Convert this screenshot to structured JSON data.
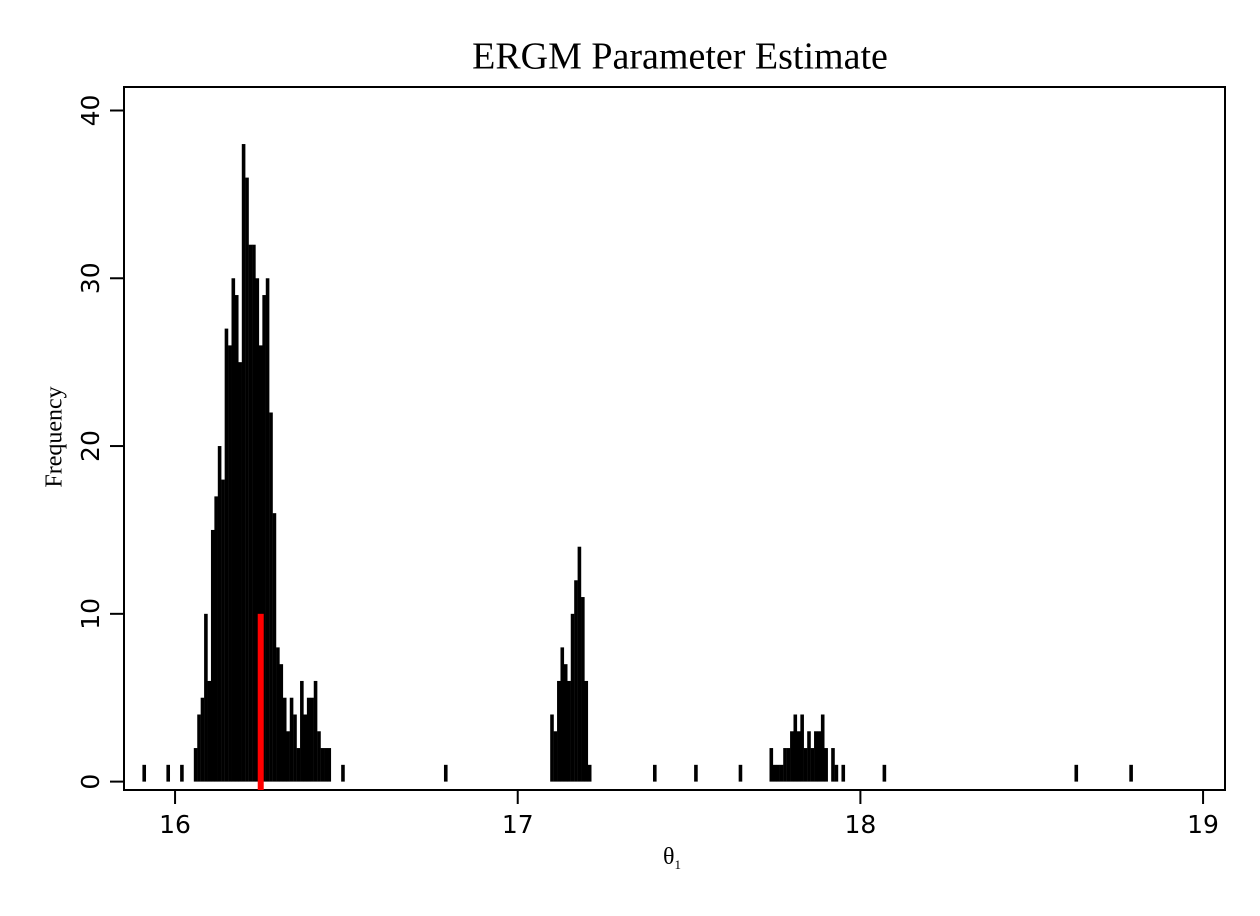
{
  "chart_data": {
    "type": "bar",
    "title": "ERGM Parameter Estimate",
    "y_label": "Frequency",
    "x_label": {
      "symbol": "θ",
      "subscript": "1"
    },
    "color": "#000000",
    "x": [
      15.91,
      15.98,
      16.02,
      16.06,
      16.07,
      16.08,
      16.09,
      16.1,
      16.11,
      16.12,
      16.13,
      16.14,
      16.15,
      16.16,
      16.17,
      16.18,
      16.19,
      16.2,
      16.21,
      16.22,
      16.23,
      16.24,
      16.25,
      16.26,
      16.27,
      16.28,
      16.29,
      16.3,
      16.31,
      16.32,
      16.33,
      16.34,
      16.35,
      16.36,
      16.37,
      16.38,
      16.39,
      16.4,
      16.41,
      16.42,
      16.43,
      16.44,
      16.45,
      16.49,
      16.79,
      17.1,
      17.11,
      17.12,
      17.13,
      17.14,
      17.15,
      17.16,
      17.17,
      17.18,
      17.19,
      17.2,
      17.21,
      17.4,
      17.52,
      17.65,
      17.74,
      17.75,
      17.76,
      17.77,
      17.78,
      17.79,
      17.8,
      17.81,
      17.82,
      17.83,
      17.84,
      17.85,
      17.86,
      17.87,
      17.88,
      17.89,
      17.9,
      17.92,
      17.93,
      17.95,
      18.07,
      18.63,
      18.79
    ],
    "values": [
      1,
      1,
      1,
      2,
      4,
      5,
      10,
      6,
      15,
      17,
      20,
      18,
      27,
      26,
      30,
      29,
      25,
      38,
      36,
      32,
      32,
      30,
      26,
      29,
      30,
      22,
      16,
      8,
      7,
      5,
      3,
      5,
      4,
      2,
      6,
      4,
      5,
      5,
      6,
      3,
      2,
      2,
      2,
      1,
      1,
      4,
      3,
      6,
      8,
      7,
      6,
      10,
      12,
      14,
      11,
      6,
      1,
      1,
      1,
      1,
      2,
      1,
      1,
      1,
      2,
      2,
      3,
      4,
      3,
      4,
      2,
      3,
      2,
      3,
      3,
      4,
      2,
      2,
      1,
      1,
      1,
      1,
      1
    ],
    "highlight": {
      "x": 16.25,
      "value": 10,
      "color": "#ff0000"
    },
    "xlim": [
      15.851,
      19.064
    ],
    "xticks": [
      16,
      17,
      18,
      19
    ],
    "ylim": [
      -0.5,
      41.4
    ],
    "yticks": [
      0,
      10,
      20,
      30,
      40
    ]
  }
}
